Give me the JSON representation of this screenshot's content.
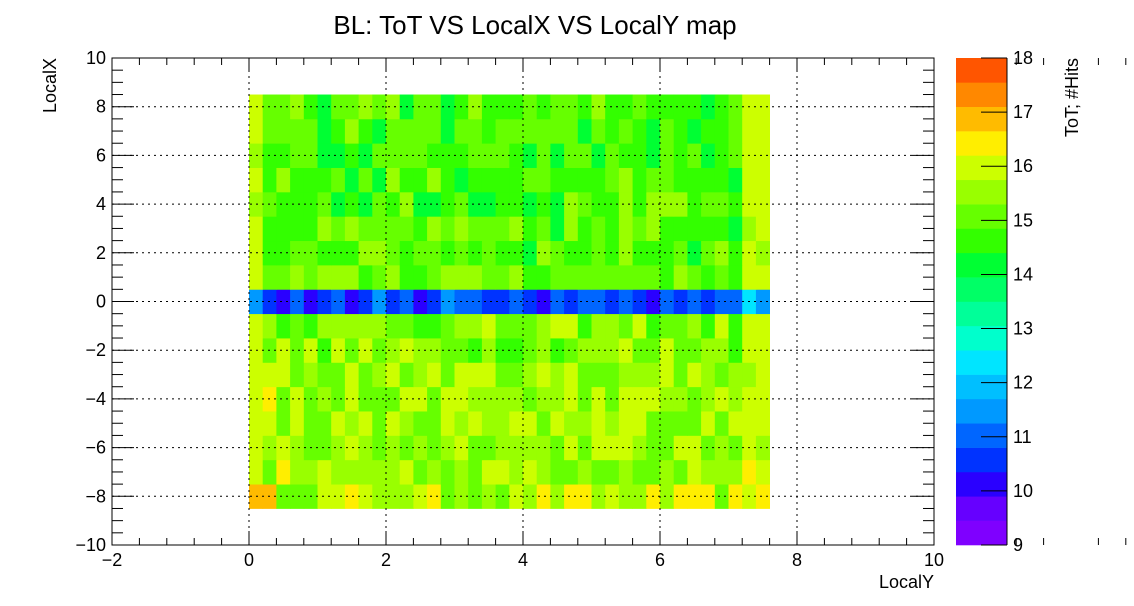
{
  "chart_data": {
    "type": "heatmap",
    "title": "BL: ToT VS LocalX VS LocalY map",
    "xlabel": "LocalY",
    "ylabel": "LocalX",
    "zlabel": "ToT; #Hits",
    "xlim": [
      -2,
      10
    ],
    "ylim": [
      -10,
      10
    ],
    "zlim": [
      9,
      18
    ],
    "x_ticks": [
      "−2",
      "0",
      "2",
      "4",
      "6",
      "8",
      "10"
    ],
    "y_ticks": [
      "−10",
      "−8",
      "−6",
      "−4",
      "−2",
      "0",
      "2",
      "4",
      "6",
      "8",
      "10"
    ],
    "z_ticks": [
      "9",
      "10",
      "11",
      "12",
      "13",
      "14",
      "15",
      "16",
      "17",
      "18"
    ],
    "grid": true,
    "palette": "ROOT rainbow (violet-blue-cyan-green-yellow-orange-red)",
    "x_range": [
      0.0,
      7.6
    ],
    "y_range": [
      -8.5,
      8.5
    ],
    "n_cols": 38,
    "n_rows": 17,
    "row_y_centers": [
      -8,
      -7,
      -6,
      -5,
      -4,
      -3,
      -2,
      -1,
      0,
      1,
      2,
      3,
      4,
      5,
      6,
      7,
      8
    ],
    "bin_width_x": 0.2,
    "bin_width_y": 1.0,
    "row_typical_tot": [
      15.7,
      15.6,
      15.5,
      15.5,
      15.5,
      15.5,
      15.4,
      15.3,
      11.0,
      15.1,
      15.0,
      14.9,
      14.9,
      14.8,
      14.7,
      14.7,
      14.8
    ],
    "band_row_tot": [
      11.6,
      10.5,
      10.2,
      11.2,
      10.3,
      10.7,
      11.0,
      10.3,
      10.5,
      11.3,
      10.6,
      10.8,
      10.3,
      10.5,
      11.3,
      10.8,
      11.2,
      10.4,
      10.7,
      11.1,
      10.5,
      10.3,
      11.0,
      10.6,
      10.8,
      11.2,
      10.4,
      10.9,
      10.6,
      10.3,
      10.8,
      10.5,
      11.0,
      10.4,
      10.8,
      11.1,
      12.2,
      11.4
    ],
    "left_edge_tot": 15.9,
    "right_edge_tot": 15.9,
    "hot_corner_bottom_left_tot": 16.9
  }
}
